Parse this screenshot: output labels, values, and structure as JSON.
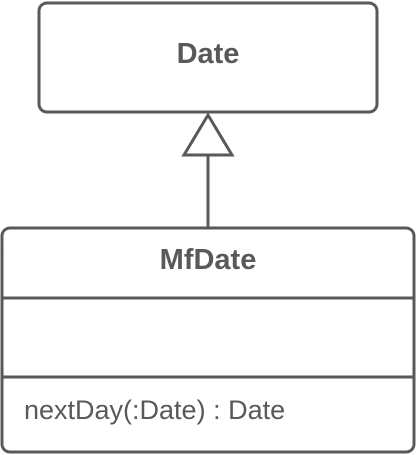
{
  "superclass": {
    "name": "Date",
    "attributes": [],
    "operations": []
  },
  "subclass": {
    "name": "MfDate",
    "attributes": [],
    "operations": [
      "nextDay(:Date) : Date"
    ]
  },
  "relationship": {
    "type": "generalization",
    "from": "MfDate",
    "to": "Date"
  },
  "colors": {
    "stroke": "#595959",
    "text": "#595959",
    "background": "#ffffff"
  }
}
